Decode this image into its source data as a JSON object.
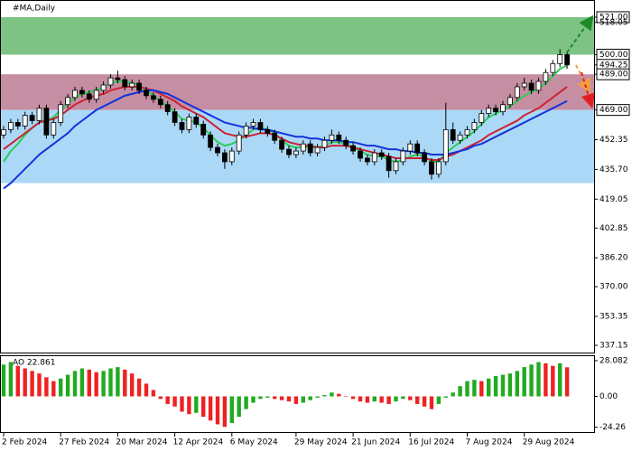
{
  "chart_data": [
    {
      "type": "candlestick",
      "title": "#MA,Daily",
      "categories": [
        "2 Feb 2024",
        null,
        null,
        null,
        null,
        null,
        null,
        null,
        "27 Feb 2024",
        null,
        null,
        null,
        null,
        null,
        null,
        null,
        "20 Mar 2024",
        null,
        null,
        null,
        null,
        null,
        null,
        null,
        "12 Apr 2024",
        null,
        null,
        null,
        null,
        null,
        null,
        null,
        "6 May 2024",
        null,
        null,
        null,
        null,
        null,
        null,
        null,
        null,
        "29 May 2024",
        null,
        null,
        null,
        null,
        null,
        null,
        null,
        "21 Jun 2024",
        null,
        null,
        null,
        null,
        null,
        null,
        null,
        "16 Jul 2024",
        null,
        null,
        null,
        null,
        null,
        null,
        null,
        "7 Aug 2024",
        null,
        null,
        null,
        null,
        null,
        null,
        null,
        "29 Aug 2024",
        null,
        null,
        null,
        null,
        null,
        null
      ],
      "candles": [
        [
          455,
          460,
          453,
          458
        ],
        [
          458,
          464,
          456,
          462
        ],
        [
          462,
          464,
          458,
          460
        ],
        [
          460,
          468,
          458,
          466
        ],
        [
          466,
          468,
          461,
          463
        ],
        [
          463,
          472,
          461,
          470
        ],
        [
          470,
          472,
          453,
          455
        ],
        [
          455,
          464,
          453,
          462
        ],
        [
          462,
          474,
          460,
          472
        ],
        [
          472,
          478,
          470,
          476
        ],
        [
          476,
          482,
          474,
          480
        ],
        [
          480,
          482,
          476,
          478
        ],
        [
          478,
          480,
          473,
          475
        ],
        [
          475,
          482,
          473,
          480
        ],
        [
          480,
          485,
          478,
          483
        ],
        [
          483,
          489,
          481,
          487
        ],
        [
          487,
          491,
          484,
          486
        ],
        [
          486,
          488,
          480,
          482
        ],
        [
          482,
          486,
          480,
          484
        ],
        [
          484,
          486,
          478,
          480
        ],
        [
          480,
          482,
          475,
          477
        ],
        [
          477,
          479,
          473,
          475
        ],
        [
          475,
          477,
          470,
          472
        ],
        [
          472,
          474,
          466,
          468
        ],
        [
          468,
          470,
          460,
          462
        ],
        [
          462,
          464,
          456,
          458
        ],
        [
          458,
          467,
          456,
          465
        ],
        [
          465,
          467,
          459,
          461
        ],
        [
          461,
          463,
          453,
          455
        ],
        [
          455,
          457,
          446,
          448
        ],
        [
          448,
          450,
          443,
          445
        ],
        [
          445,
          447,
          436,
          440
        ],
        [
          440,
          448,
          438,
          446
        ],
        [
          446,
          457,
          444,
          455
        ],
        [
          455,
          462,
          453,
          460
        ],
        [
          460,
          464,
          458,
          462
        ],
        [
          462,
          464,
          456,
          458
        ],
        [
          458,
          460,
          454,
          456
        ],
        [
          456,
          458,
          450,
          452
        ],
        [
          452,
          454,
          445,
          447
        ],
        [
          447,
          449,
          442,
          444
        ],
        [
          444,
          448,
          442,
          446
        ],
        [
          446,
          452,
          444,
          450
        ],
        [
          450,
          452,
          443,
          445
        ],
        [
          445,
          450,
          443,
          448
        ],
        [
          448,
          454,
          446,
          452
        ],
        [
          452,
          458,
          450,
          455
        ],
        [
          455,
          457,
          450,
          452
        ],
        [
          452,
          454,
          447,
          449
        ],
        [
          449,
          451,
          444,
          446
        ],
        [
          446,
          448,
          440,
          442
        ],
        [
          442,
          444,
          438,
          440
        ],
        [
          440,
          447,
          438,
          445
        ],
        [
          445,
          447,
          441,
          443
        ],
        [
          443,
          445,
          431,
          435
        ],
        [
          435,
          442,
          433,
          440
        ],
        [
          440,
          448,
          438,
          446
        ],
        [
          446,
          452,
          444,
          450
        ],
        [
          450,
          452,
          443,
          445
        ],
        [
          445,
          447,
          438,
          440
        ],
        [
          440,
          442,
          430,
          433
        ],
        [
          433,
          442,
          431,
          440
        ],
        [
          440,
          473,
          438,
          458
        ],
        [
          458,
          462,
          450,
          452
        ],
        [
          452,
          457,
          450,
          455
        ],
        [
          455,
          460,
          453,
          458
        ],
        [
          458,
          464,
          456,
          462
        ],
        [
          462,
          469,
          460,
          467
        ],
        [
          467,
          472,
          465,
          470
        ],
        [
          470,
          472,
          466,
          468
        ],
        [
          468,
          474,
          466,
          472
        ],
        [
          472,
          478,
          470,
          476
        ],
        [
          476,
          484,
          474,
          482
        ],
        [
          482,
          487,
          480,
          484
        ],
        [
          484,
          486,
          478,
          480
        ],
        [
          480,
          487,
          478,
          485
        ],
        [
          485,
          492,
          483,
          490
        ],
        [
          490,
          497,
          488,
          495
        ],
        [
          495,
          503,
          493,
          500
        ],
        [
          500,
          502,
          492,
          494.25
        ]
      ],
      "up_color": "#ffffff",
      "down_color": "#000000",
      "series": [
        {
          "color": "#2ecc55",
          "values": [
            440,
            446,
            450,
            455,
            459,
            462,
            463,
            465,
            469,
            473,
            476,
            478,
            479,
            480,
            482,
            484,
            485,
            485,
            484,
            483,
            480,
            477,
            474,
            471,
            468,
            464,
            463,
            462,
            459,
            455,
            451,
            449,
            450,
            452,
            455,
            458,
            459,
            458,
            456,
            452,
            449,
            448,
            448,
            448,
            448,
            449,
            451,
            451,
            450,
            448,
            446,
            444,
            443,
            443,
            441,
            440,
            441,
            443,
            444,
            443,
            440,
            440,
            445,
            448,
            451,
            454,
            457,
            461,
            465,
            467,
            469,
            471,
            474,
            477,
            479,
            481,
            484,
            488,
            492,
            494
          ]
        },
        {
          "color": "#cc2233",
          "values": [
            447,
            450,
            453,
            456,
            459,
            462,
            463,
            464,
            466,
            469,
            472,
            474,
            476,
            477,
            478,
            480,
            481,
            482,
            482,
            482,
            481,
            480,
            478,
            476,
            474,
            471,
            469,
            467,
            465,
            462,
            459,
            456,
            455,
            454,
            454,
            455,
            456,
            456,
            455,
            453,
            451,
            450,
            449,
            449,
            448,
            448,
            449,
            449,
            449,
            448,
            447,
            446,
            445,
            444,
            443,
            442,
            442,
            442,
            442,
            442,
            441,
            441,
            443,
            444,
            446,
            448,
            450,
            452,
            455,
            457,
            459,
            461,
            463,
            466,
            468,
            470,
            473,
            476,
            479,
            482
          ]
        },
        {
          "color": "#1133dd",
          "values": [
            425,
            428,
            432,
            436,
            440,
            444,
            447,
            450,
            453,
            456,
            460,
            463,
            466,
            469,
            471,
            473,
            475,
            477,
            478,
            479,
            480,
            480,
            479,
            478,
            476,
            474,
            472,
            470,
            468,
            466,
            464,
            462,
            461,
            460,
            459,
            459,
            458,
            458,
            457,
            456,
            455,
            454,
            454,
            453,
            453,
            452,
            452,
            452,
            451,
            451,
            450,
            449,
            449,
            448,
            447,
            447,
            446,
            446,
            445,
            445,
            444,
            444,
            444,
            445,
            446,
            447,
            449,
            450,
            452,
            454,
            456,
            458,
            460,
            462,
            464,
            466,
            468,
            470,
            472,
            474
          ]
        }
      ],
      "zones": [
        {
          "from": 500,
          "to": 521,
          "color": "#7ec284"
        },
        {
          "from": 469,
          "to": 489,
          "color": "#c68ea2"
        },
        {
          "from": 428,
          "to": 469,
          "color": "#acd8f7"
        }
      ],
      "ylim": [
        333.1,
        530.1
      ],
      "yticks": [
        {
          "value": 521,
          "label": "521.00"
        },
        518.05,
        {
          "value": 500,
          "label": "500.00"
        },
        494.25,
        {
          "value": 489,
          "label": "489.00"
        },
        {
          "value": 469,
          "label": "469.00"
        },
        452.35,
        {
          "value": 435.7,
          "label": "435.70"
        },
        419.05,
        402.85,
        {
          "value": 386.2,
          "label": "386.20"
        },
        {
          "value": 370,
          "label": "370.00"
        },
        353.35,
        337.15
      ]
    },
    {
      "type": "bar",
      "title": "AO 22.861",
      "values": [
        25,
        27,
        24,
        22,
        20,
        18,
        15,
        12,
        14,
        17,
        20,
        22,
        21,
        19,
        20,
        22,
        23,
        21,
        18,
        14,
        10,
        5,
        -2,
        -6,
        -8,
        -12,
        -14,
        -13,
        -16,
        -19,
        -22,
        -24,
        -21,
        -16,
        -10,
        -5,
        -2,
        -1,
        -2,
        -3,
        -4,
        -6,
        -5,
        -3,
        -1,
        1,
        3,
        2,
        0,
        -2,
        -4,
        -5,
        -4,
        -5,
        -6,
        -4,
        -2,
        -3,
        -6,
        -8,
        -10,
        -6,
        -1,
        3,
        8,
        12,
        13,
        12,
        14,
        16,
        17,
        18,
        20,
        23,
        25,
        27,
        26,
        24,
        26,
        22.861
      ],
      "up_color": "#22aa22",
      "down_color": "#ee2222",
      "ylim": [
        -28.1,
        31.6
      ],
      "yticks": [
        28.082,
        {
          "value": 0,
          "label": "0.00"
        },
        -24.26
      ]
    }
  ]
}
